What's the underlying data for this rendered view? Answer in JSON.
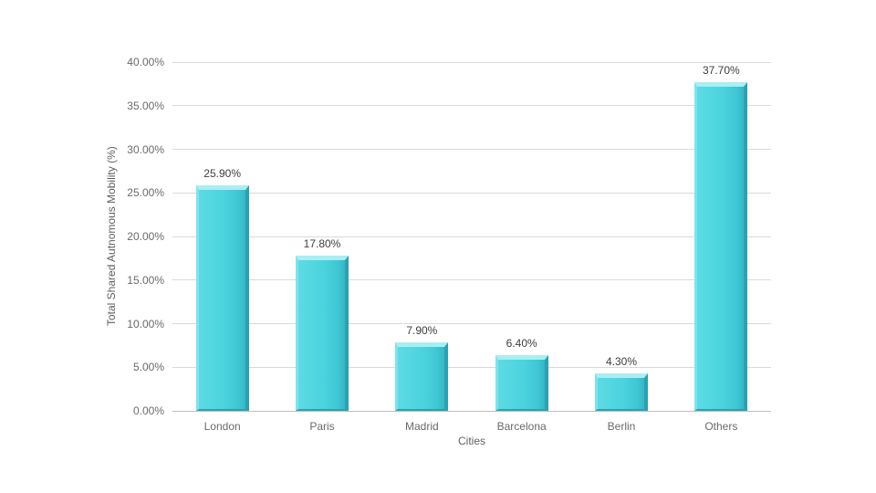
{
  "chart_data": {
    "type": "bar",
    "title": "",
    "xlabel": "Cities",
    "ylabel": "Total Shared Autnomous Mobility (%)",
    "categories": [
      "London",
      "Paris",
      "Madrid",
      "Barcelona",
      "Berlin",
      "Others"
    ],
    "values": [
      25.9,
      17.8,
      7.9,
      6.4,
      4.3,
      37.7
    ],
    "bar_labels": [
      "25.90%",
      "17.80%",
      "7.90%",
      "6.40%",
      "4.30%",
      "37.70%"
    ],
    "ylim": [
      0,
      40
    ],
    "ytick_step": 5,
    "ytick_labels": [
      "0.00%",
      "5.00%",
      "10.00%",
      "15.00%",
      "20.00%",
      "25.00%",
      "30.00%",
      "35.00%",
      "40.00%"
    ],
    "grid": "horizontal",
    "legend": "none",
    "bar_color": "#47d1dc",
    "bar_highlight_color": "#a9eef3",
    "bar_shadow_color": "#2aa2b2",
    "gridline_color": "#d9d9d9",
    "axis_line_color": "#bfbfbf",
    "tick_label_color": "#6a6a6a",
    "data_label_color": "#3d3d3d",
    "background_color": "#ffffff"
  }
}
